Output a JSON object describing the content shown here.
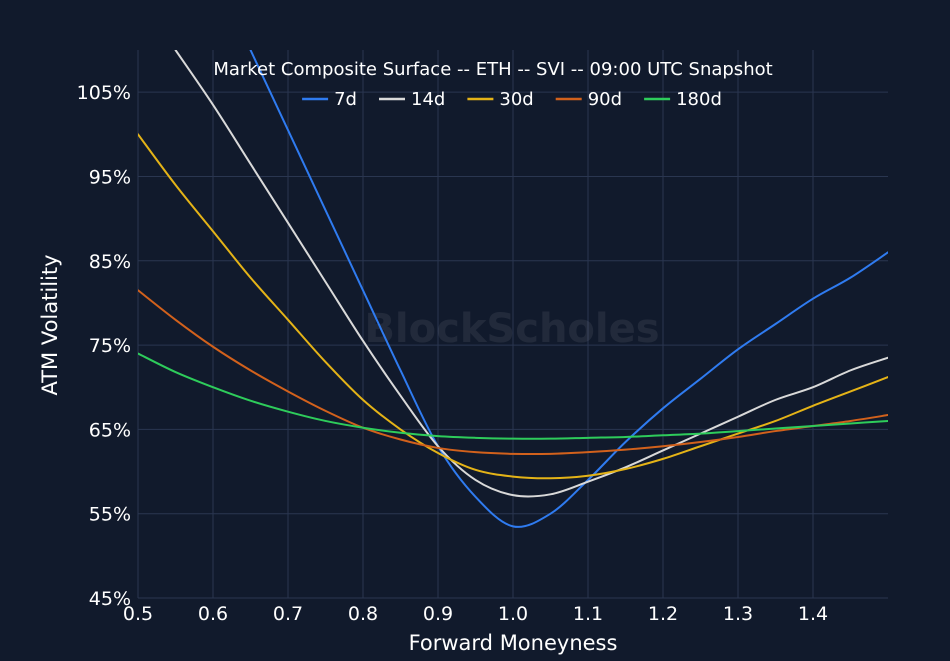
{
  "chart_data": {
    "type": "line",
    "title": "Market Composite Surface -- ETH -- SVI -- 09:00 UTC Snapshot",
    "xlabel": "Forward Moneyness",
    "ylabel": "ATM Volatility",
    "watermark": "BlockScholes",
    "xlim": [
      0.5,
      1.5
    ],
    "ylim": [
      45,
      110
    ],
    "xticks": [
      0.5,
      0.6,
      0.7,
      0.8,
      0.9,
      1.0,
      1.1,
      1.2,
      1.3,
      1.4
    ],
    "xtick_labels": [
      "0.5",
      "0.6",
      "0.7",
      "0.8",
      "0.9",
      "1.0",
      "1.1",
      "1.2",
      "1.3",
      "1.4"
    ],
    "yticks": [
      45,
      55,
      65,
      75,
      85,
      95,
      105
    ],
    "ytick_labels": [
      "45%",
      "55%",
      "65%",
      "75%",
      "85%",
      "95%",
      "105%"
    ],
    "grid": true,
    "legend_position": "top-center",
    "background": "#111a2c",
    "grid_color": "#2a3650",
    "series": [
      {
        "name": "7d",
        "color": "#2f7bf0",
        "x": [
          0.65,
          0.7,
          0.75,
          0.8,
          0.85,
          0.9,
          0.95,
          1.0,
          1.05,
          1.1,
          1.15,
          1.2,
          1.25,
          1.3,
          1.35,
          1.4,
          1.45,
          1.5
        ],
        "y": [
          110,
          100.5,
          91,
          81.5,
          72,
          63,
          57,
          53.5,
          55,
          59,
          63.5,
          67.5,
          71,
          74.5,
          77.5,
          80.5,
          83,
          86
        ]
      },
      {
        "name": "14d",
        "color": "#d9d9d9",
        "x": [
          0.55,
          0.6,
          0.65,
          0.7,
          0.75,
          0.8,
          0.85,
          0.9,
          0.95,
          1.0,
          1.05,
          1.1,
          1.15,
          1.2,
          1.25,
          1.3,
          1.35,
          1.4,
          1.45,
          1.5
        ],
        "y": [
          110,
          103.5,
          96.5,
          89.5,
          82.5,
          75.5,
          69,
          63,
          59,
          57.2,
          57.3,
          58.8,
          60.5,
          62.5,
          64.5,
          66.5,
          68.5,
          70,
          72,
          73.5
        ]
      },
      {
        "name": "30d",
        "color": "#e4b317",
        "x": [
          0.5,
          0.55,
          0.6,
          0.65,
          0.7,
          0.75,
          0.8,
          0.85,
          0.9,
          0.95,
          1.0,
          1.05,
          1.1,
          1.15,
          1.2,
          1.25,
          1.3,
          1.35,
          1.4,
          1.45,
          1.5
        ],
        "y": [
          100,
          94,
          88.5,
          83,
          78,
          73,
          68.5,
          65,
          62.2,
          60.2,
          59.4,
          59.2,
          59.5,
          60.3,
          61.5,
          63,
          64.5,
          66,
          67.8,
          69.5,
          71.2
        ]
      },
      {
        "name": "90d",
        "color": "#d2611c",
        "x": [
          0.5,
          0.55,
          0.6,
          0.65,
          0.7,
          0.75,
          0.8,
          0.85,
          0.9,
          0.95,
          1.0,
          1.05,
          1.1,
          1.15,
          1.2,
          1.25,
          1.3,
          1.35,
          1.4,
          1.45,
          1.5
        ],
        "y": [
          81.5,
          78,
          74.8,
          72,
          69.5,
          67.2,
          65.2,
          63.8,
          62.8,
          62.3,
          62.1,
          62.1,
          62.3,
          62.6,
          63,
          63.5,
          64.1,
          64.8,
          65.4,
          66,
          66.7
        ]
      },
      {
        "name": "180d",
        "color": "#2ecc5b",
        "x": [
          0.5,
          0.55,
          0.6,
          0.65,
          0.7,
          0.75,
          0.8,
          0.85,
          0.9,
          0.95,
          1.0,
          1.05,
          1.1,
          1.15,
          1.2,
          1.25,
          1.3,
          1.35,
          1.4,
          1.45,
          1.5
        ],
        "y": [
          74,
          71.8,
          70,
          68.4,
          67.1,
          66,
          65.2,
          64.6,
          64.2,
          64,
          63.9,
          63.9,
          64,
          64.1,
          64.3,
          64.5,
          64.8,
          65.1,
          65.4,
          65.7,
          66
        ]
      }
    ]
  }
}
